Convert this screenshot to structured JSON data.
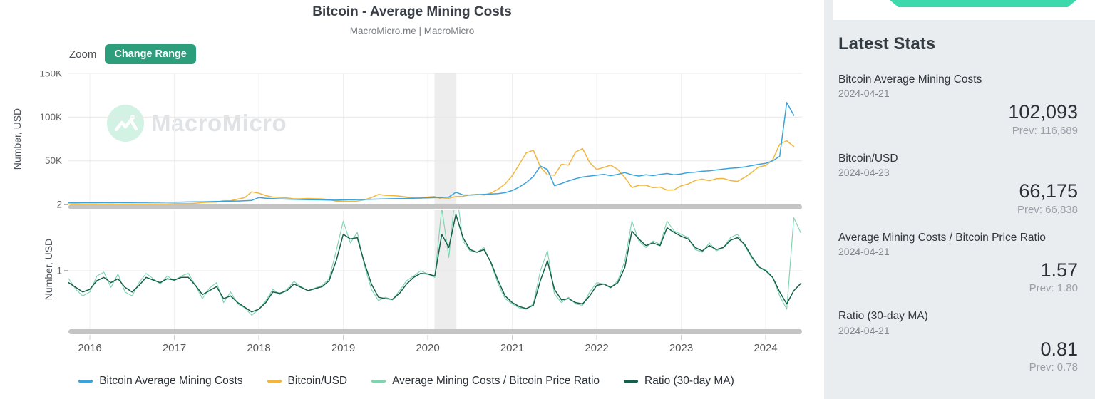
{
  "header": {
    "title": "Bitcoin - Average Mining Costs",
    "subtitle": "MacroMicro.me | MacroMicro"
  },
  "toolbar": {
    "zoom_label": "Zoom",
    "change_range_label": "Change Range",
    "button_color": "#2D9E7C"
  },
  "watermark": {
    "text": "MacroMicro"
  },
  "legend": {
    "items": [
      {
        "label": "Bitcoin Average Mining Costs",
        "color": "#3BA3DC"
      },
      {
        "label": "Bitcoin/USD",
        "color": "#F2B63F"
      },
      {
        "label": "Average Mining Costs / Bitcoin Price Ratio",
        "color": "#7FD4B0"
      },
      {
        "label": "Ratio (30-day MA)",
        "color": "#15604B"
      }
    ]
  },
  "chart_data": {
    "type": "line",
    "x_axis": {
      "ticks": [
        2016,
        2017,
        2018,
        2019,
        2020,
        2021,
        2022,
        2023,
        2024
      ],
      "range": [
        2015.75,
        2024.43
      ]
    },
    "recession_band": {
      "from": 2020.08,
      "to": 2020.34
    },
    "panels": [
      {
        "name": "price-panel",
        "ylabel": "Number, USD",
        "ylim": [
          0,
          153000
        ],
        "yticks": [
          {
            "v": 50000,
            "label": "50K"
          },
          {
            "v": 100000,
            "label": "100K"
          },
          {
            "v": 150000,
            "label": "150K"
          }
        ],
        "series": [
          {
            "name": "Bitcoin Average Mining Costs",
            "color": "#3BA3DC",
            "z": 2,
            "x_start": 2015.75,
            "x_step": 0.083333,
            "values": [
              1800,
              1900,
              2000,
              2000,
              2050,
              2100,
              2150,
              2200,
              2250,
              2300,
              2350,
              2400,
              2450,
              2500,
              2600,
              2700,
              2800,
              2900,
              3000,
              3100,
              3250,
              3400,
              3600,
              3800,
              4000,
              4300,
              4700,
              8000,
              7200,
              6800,
              6400,
              6100,
              5900,
              5700,
              5500,
              5400,
              5300,
              5100,
              5000,
              5200,
              5400,
              5600,
              5800,
              6000,
              6200,
              6400,
              6600,
              6800,
              7000,
              7200,
              7400,
              7600,
              7800,
              8000,
              8500,
              14000,
              11000,
              10800,
              11200,
              11600,
              12000,
              12500,
              13500,
              16000,
              20000,
              25000,
              32000,
              44000,
              40000,
              21500,
              24000,
              27000,
              29500,
              31500,
              32500,
              33500,
              34500,
              33000,
              34500,
              36500,
              34000,
              32500,
              34000,
              33000,
              34500,
              35500,
              34000,
              35000,
              36500,
              37000,
              38000,
              38500,
              39500,
              40500,
              41500,
              42000,
              43000,
              44500,
              46000,
              47000,
              50000,
              55000,
              116689,
              102093
            ]
          },
          {
            "name": "Bitcoin/USD",
            "color": "#F2B63F",
            "z": 1,
            "x_start": 2015.75,
            "x_step": 0.083333,
            "values": [
              280,
              330,
              430,
              430,
              420,
              410,
              450,
              460,
              580,
              660,
              600,
              610,
              640,
              710,
              770,
              960,
              1050,
              1100,
              1350,
              2300,
              2550,
              2750,
              4400,
              4300,
              6100,
              7800,
              14500,
              13000,
              10200,
              8600,
              8100,
              7500,
              6500,
              6600,
              6900,
              6600,
              6400,
              5600,
              3800,
              3600,
              3700,
              4000,
              5300,
              8000,
              11500,
              10500,
              10200,
              9600,
              8600,
              7600,
              7200,
              8600,
              9100,
              6200,
              7100,
              9200,
              9400,
              11000,
              11600,
              10800,
              13200,
              17500,
              23500,
              33000,
              46000,
              59000,
              62000,
              43000,
              34000,
              33500,
              46000,
              45000,
              60000,
              64000,
              48000,
              40000,
              42500,
              45000,
              40000,
              31000,
              19500,
              22000,
              22000,
              19200,
              20000,
              16500,
              16800,
              21500,
              23500,
              27500,
              29000,
              27200,
              29500,
              29800,
              27300,
              26500,
              31000,
              36500,
              43000,
              44500,
              51000,
              69000,
              73000,
              66175
            ]
          }
        ]
      },
      {
        "name": "ratio-panel",
        "ylabel": "Number, USD",
        "ylim": [
          0.09,
          1.91
        ],
        "yticks": [
          {
            "v": 1,
            "label": "1"
          },
          {
            "v": 2,
            "label": "2"
          }
        ],
        "series": [
          {
            "name": "Average Mining Costs / Bitcoin Price Ratio",
            "color": "#7FD4B0",
            "z": 1,
            "x_start": 2015.75,
            "x_step": 0.083333,
            "values": [
              0.88,
              0.72,
              0.62,
              0.68,
              0.92,
              0.98,
              0.75,
              0.95,
              0.68,
              0.62,
              0.82,
              0.96,
              0.88,
              0.8,
              0.92,
              0.85,
              0.92,
              0.96,
              0.78,
              0.58,
              0.74,
              0.82,
              0.52,
              0.68,
              0.5,
              0.44,
              0.33,
              0.42,
              0.55,
              0.72,
              0.64,
              0.72,
              0.84,
              0.76,
              0.7,
              0.74,
              0.78,
              0.88,
              1.3,
              1.75,
              1.42,
              1.58,
              1.08,
              0.72,
              0.55,
              0.6,
              0.56,
              0.7,
              0.85,
              0.92,
              1.0,
              0.95,
              0.9,
              1.95,
              1.2,
              2.25,
              1.45,
              1.3,
              1.28,
              1.35,
              1.1,
              0.8,
              0.58,
              0.5,
              0.44,
              0.42,
              0.5,
              1.0,
              1.3,
              0.65,
              0.52,
              0.6,
              0.5,
              0.48,
              0.68,
              0.82,
              0.8,
              0.74,
              0.85,
              1.15,
              1.75,
              1.45,
              1.35,
              1.45,
              1.4,
              1.75,
              1.6,
              1.55,
              1.5,
              1.32,
              1.28,
              1.42,
              1.3,
              1.35,
              1.5,
              1.55,
              1.38,
              1.2,
              1.05,
              1.02,
              0.9,
              0.62,
              0.42,
              1.8,
              1.57
            ]
          },
          {
            "name": "Ratio (30-day MA)",
            "color": "#15604B",
            "z": 2,
            "x_start": 2015.75,
            "x_step": 0.083333,
            "values": [
              0.82,
              0.75,
              0.68,
              0.72,
              0.85,
              0.9,
              0.82,
              0.88,
              0.75,
              0.68,
              0.78,
              0.9,
              0.86,
              0.82,
              0.88,
              0.86,
              0.9,
              0.9,
              0.78,
              0.64,
              0.7,
              0.76,
              0.58,
              0.62,
              0.52,
              0.45,
              0.38,
              0.42,
              0.52,
              0.68,
              0.66,
              0.7,
              0.8,
              0.75,
              0.7,
              0.73,
              0.76,
              0.85,
              1.15,
              1.55,
              1.48,
              1.5,
              1.12,
              0.8,
              0.6,
              0.58,
              0.57,
              0.66,
              0.8,
              0.9,
              0.96,
              0.95,
              0.92,
              1.55,
              1.35,
              1.85,
              1.5,
              1.32,
              1.28,
              1.32,
              1.12,
              0.85,
              0.62,
              0.52,
              0.46,
              0.43,
              0.48,
              0.85,
              1.15,
              0.72,
              0.56,
              0.58,
              0.52,
              0.5,
              0.62,
              0.78,
              0.8,
              0.75,
              0.82,
              1.05,
              1.6,
              1.48,
              1.38,
              1.42,
              1.38,
              1.65,
              1.58,
              1.52,
              1.48,
              1.35,
              1.3,
              1.38,
              1.32,
              1.35,
              1.46,
              1.5,
              1.4,
              1.22,
              1.06,
              1.0,
              0.9,
              0.68,
              0.5,
              0.7,
              0.81
            ]
          }
        ]
      }
    ]
  },
  "stats_panel": {
    "heading": "Latest Stats",
    "banner_color": "#3CD9AC",
    "items": [
      {
        "name": "Bitcoin Average Mining Costs",
        "date": "2024-04-21",
        "value": "102,093",
        "prev": "Prev: 116,689"
      },
      {
        "name": "Bitcoin/USD",
        "date": "2024-04-23",
        "value": "66,175",
        "prev": "Prev: 66,838"
      },
      {
        "name": "Average Mining Costs / Bitcoin Price Ratio",
        "date": "2024-04-21",
        "value": "1.57",
        "prev": "Prev: 1.80"
      },
      {
        "name": "Ratio (30-day MA)",
        "date": "2024-04-21",
        "value": "0.81",
        "prev": "Prev: 0.78"
      }
    ]
  }
}
